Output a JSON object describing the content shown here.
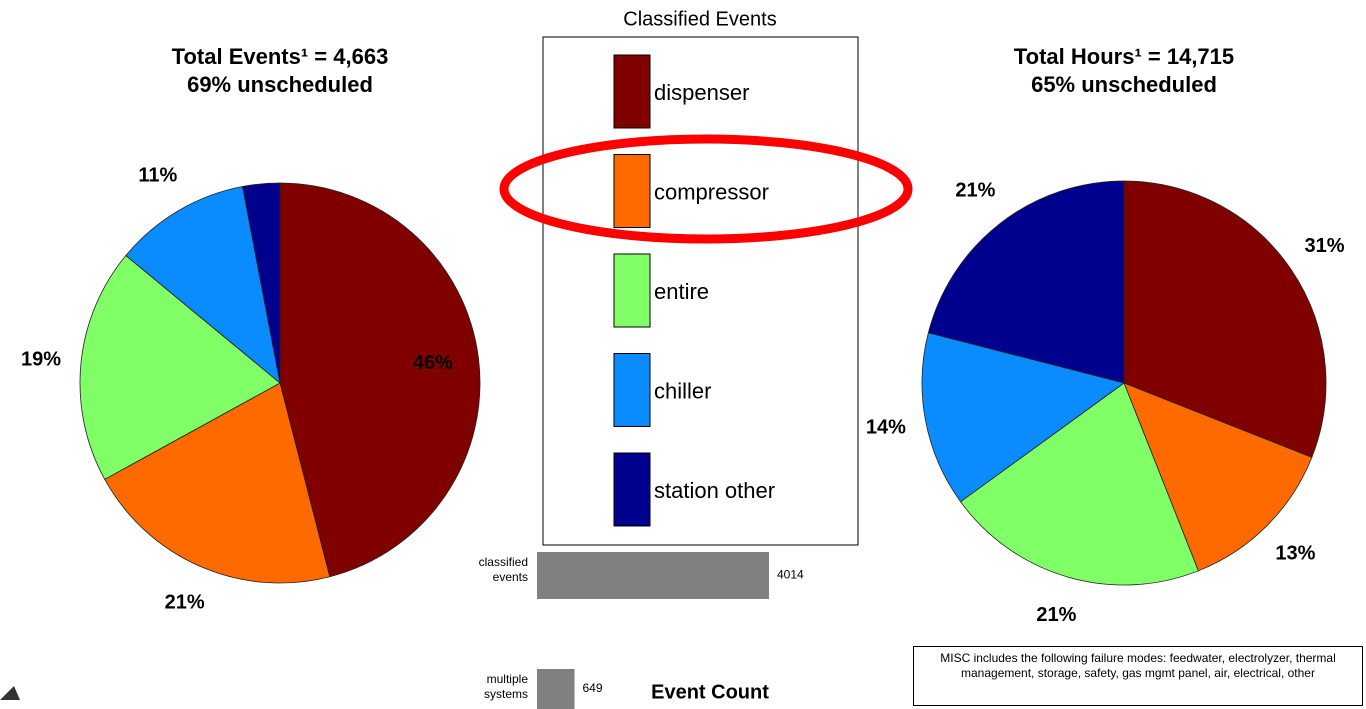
{
  "chart_data": [
    {
      "type": "pie",
      "title": "Total Events¹ = 4,663",
      "subtitle": "69% unscheduled",
      "categories": [
        "dispenser",
        "compressor",
        "entire",
        "chiller",
        "station other"
      ],
      "values": [
        46,
        21,
        19,
        11,
        3
      ],
      "value_labels": [
        "46%",
        "21%",
        "19%",
        "11%",
        null
      ],
      "colors": [
        "#800000",
        "#ff6a00",
        "#80ff66",
        "#0a8cff",
        "#00008f"
      ],
      "legend": {
        "title": "Classified Events"
      }
    },
    {
      "type": "pie",
      "title": "Total Hours¹ = 14,715",
      "subtitle": "65% unscheduled",
      "categories": [
        "dispenser",
        "compressor",
        "entire",
        "chiller",
        "station other"
      ],
      "values": [
        31,
        13,
        21,
        14,
        21
      ],
      "value_labels": [
        "31%",
        "13%",
        "21%",
        "14%",
        "21%"
      ],
      "colors": [
        "#800000",
        "#ff6a00",
        "#80ff66",
        "#0a8cff",
        "#00008f"
      ]
    },
    {
      "type": "hbar",
      "title": "Event Count",
      "categories": [
        "classified events",
        "multiple systems"
      ],
      "values": [
        4014,
        649
      ],
      "color": "#808080",
      "xlim": [
        0,
        5000
      ]
    }
  ],
  "note": "MISC includes the following failure modes: feedwater, electrolyzer, thermal management, storage, safety, gas mgmt panel, air, electrical, other"
}
